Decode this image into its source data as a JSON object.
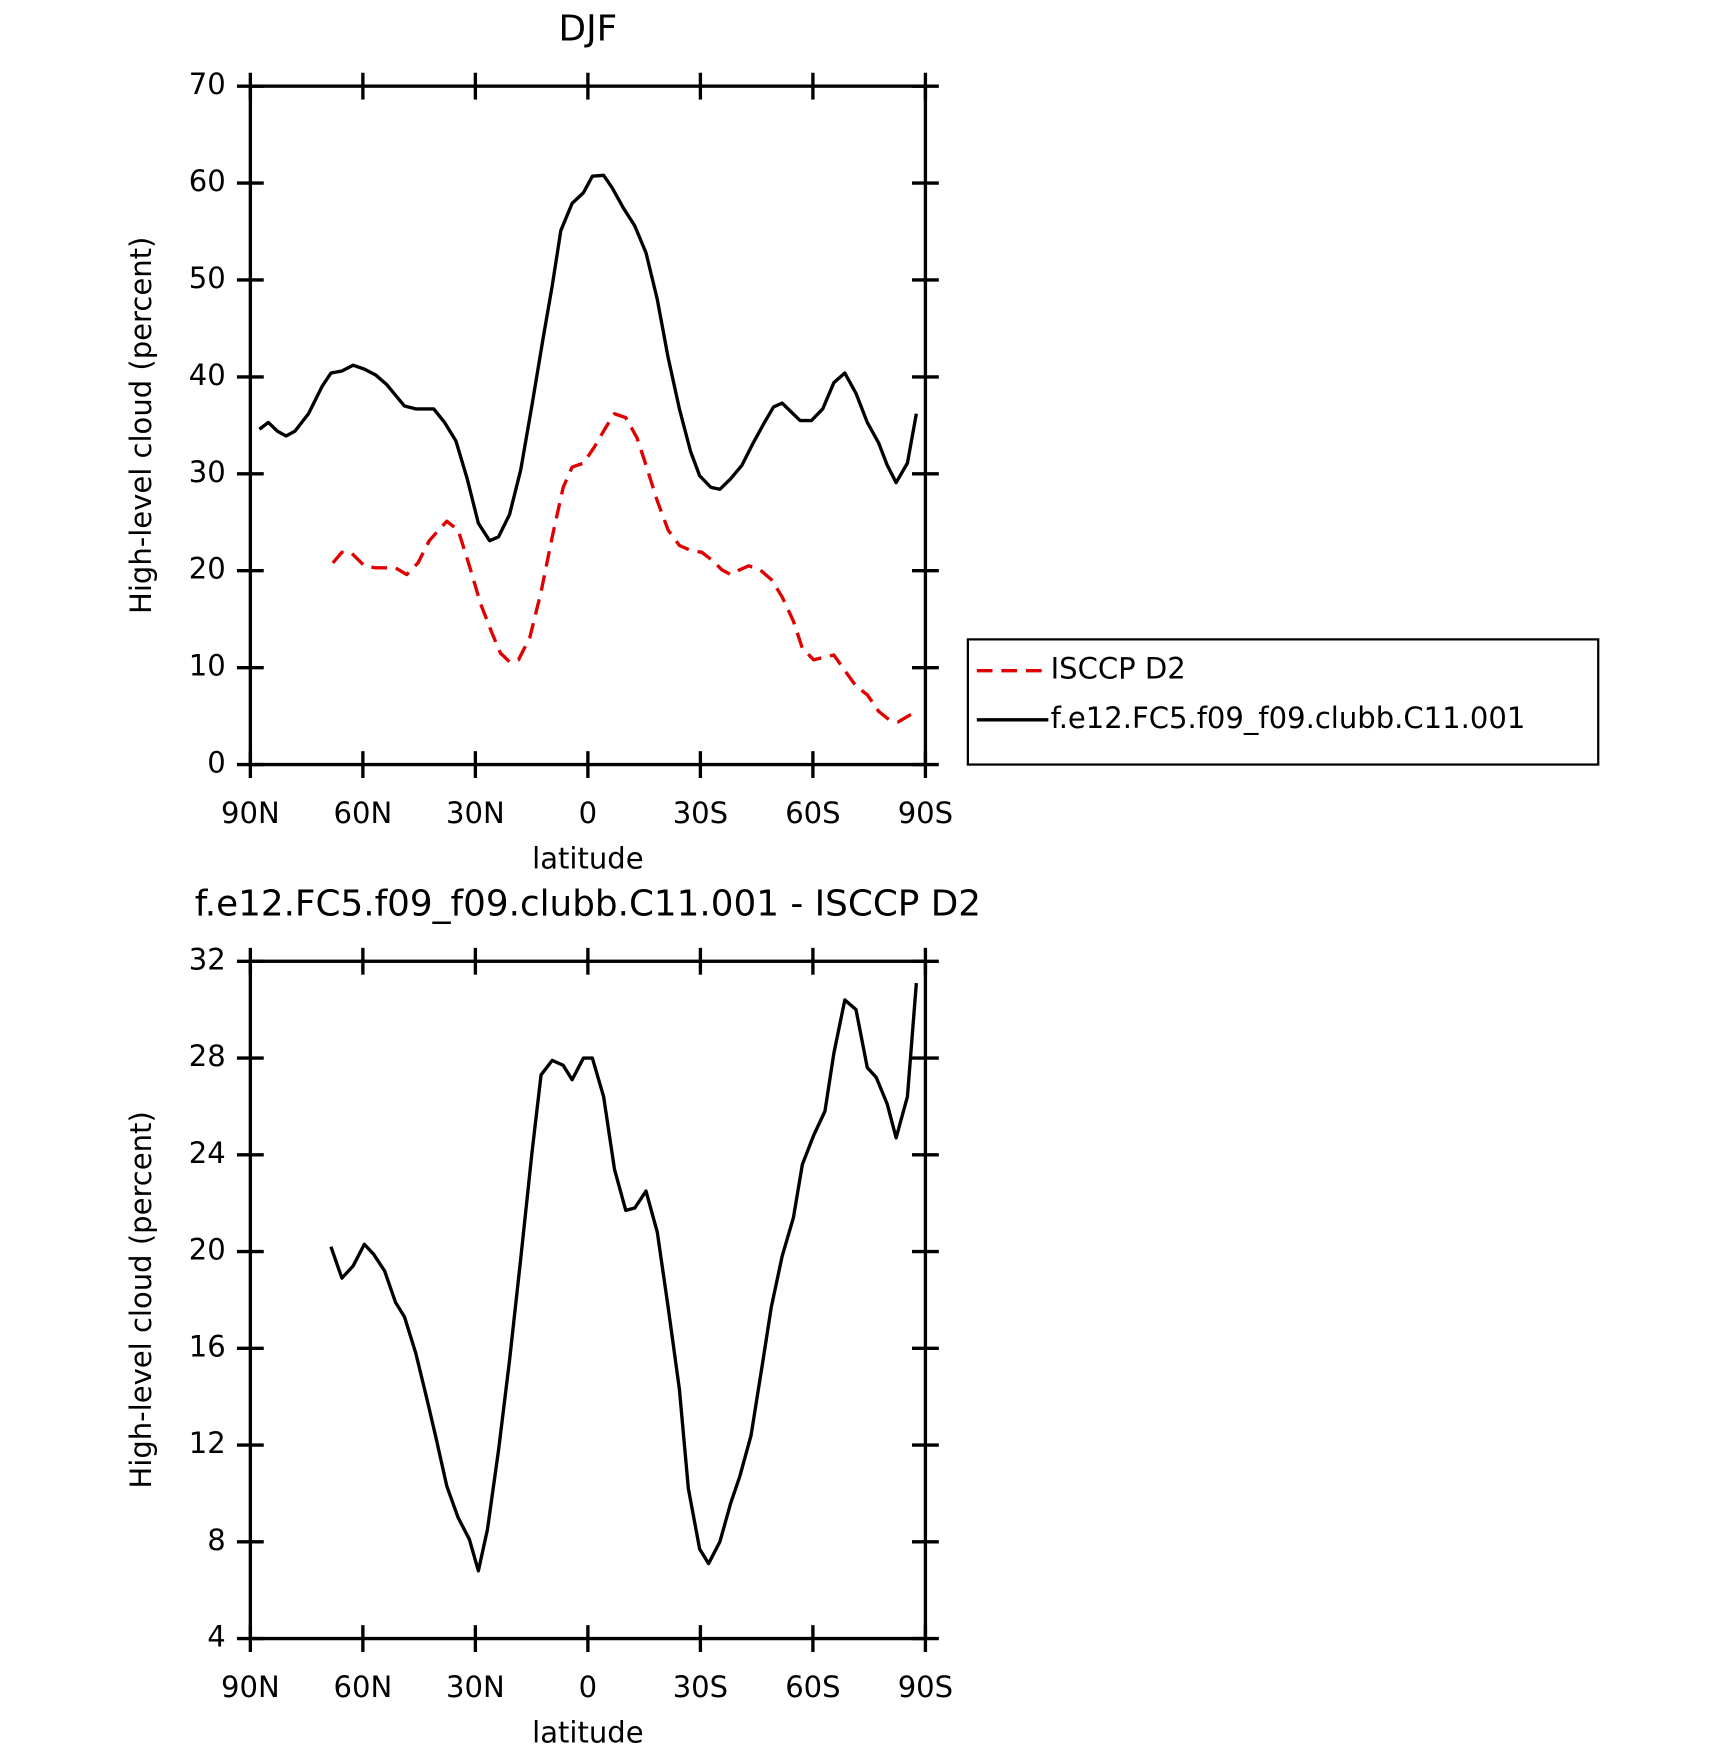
{
  "chart_data": [
    {
      "type": "line",
      "title": "DJF",
      "xlabel": "latitude",
      "ylabel": "High-level cloud (percent)",
      "xlim": [
        90,
        -90
      ],
      "xticks": [
        {
          "value": 90,
          "label": "90N"
        },
        {
          "value": 60,
          "label": "60N"
        },
        {
          "value": 30,
          "label": "30N"
        },
        0,
        {
          "value": -30,
          "label": "30S"
        },
        {
          "value": -60,
          "label": "60S"
        },
        {
          "value": -90,
          "label": "90S"
        }
      ],
      "ylim": [
        0,
        70
      ],
      "yticks": [
        0,
        10,
        20,
        30,
        40,
        50,
        60,
        70
      ],
      "legend": "right",
      "series": [
        {
          "name": "ISCCP D2",
          "color": "#e00000",
          "dash": true,
          "x": [
            68.0,
            65.6,
            63.2,
            59.6,
            56.6,
            53.6,
            51.3,
            48.3,
            45.3,
            42.3,
            39.3,
            37.6,
            34.6,
            31.6,
            28.6,
            25.6,
            23.3,
            20.9,
            18.5,
            15.5,
            12.5,
            9.5,
            6.6,
            4.2,
            1.2,
            -1.8,
            -4.8,
            -7.1,
            -10.1,
            -13.1,
            -15.5,
            -18.5,
            -21.4,
            -24.4,
            -27.4,
            -30.4,
            -33.4,
            -35.7,
            -38.1,
            -40.5,
            -42.9,
            -45.9,
            -48.9,
            -51.8,
            -54.8,
            -57.2,
            -60.2,
            -63.2,
            -65.6,
            -68.5,
            -71.5,
            -74.5,
            -77.5,
            -80.4,
            -82.8,
            -85.8,
            -88.2
          ],
          "values": [
            20.8,
            21.9,
            21.9,
            20.5,
            20.3,
            20.3,
            20.3,
            19.6,
            20.8,
            23.1,
            24.4,
            25.1,
            24.2,
            20.5,
            16.6,
            13.6,
            11.5,
            10.6,
            10.8,
            13.1,
            17.8,
            23.5,
            28.6,
            30.7,
            31.1,
            32.8,
            34.8,
            36.2,
            35.8,
            33.7,
            30.9,
            27.2,
            24.2,
            22.6,
            22.1,
            21.9,
            21.0,
            20.1,
            19.6,
            20.1,
            20.5,
            20.1,
            19.1,
            17.3,
            14.8,
            12.0,
            10.8,
            11.1,
            11.3,
            9.7,
            8.1,
            7.2,
            5.5,
            4.6,
            4.4,
            5.1,
            5.5
          ]
        },
        {
          "name": "f.e12.FC5.f09_f09.clubb.C11.001",
          "color": "#000000",
          "dash": false,
          "x": [
            87.6,
            85.2,
            82.8,
            80.5,
            78.1,
            74.5,
            70.9,
            68.5,
            65.6,
            62.6,
            59.6,
            56.6,
            53.6,
            48.9,
            45.9,
            41.1,
            38.2,
            35.2,
            32.2,
            29.2,
            26.2,
            23.8,
            20.9,
            17.9,
            14.9,
            11.9,
            9.5,
            7.2,
            4.2,
            1.2,
            -1.2,
            -4.2,
            -6.5,
            -9.5,
            -12.5,
            -15.5,
            -18.5,
            -21.4,
            -24.4,
            -27.4,
            -29.8,
            -32.8,
            -35.2,
            -38.1,
            -41.1,
            -44.1,
            -47.1,
            -49.5,
            -51.8,
            -56.6,
            -59.6,
            -62.6,
            -65.6,
            -68.5,
            -71.5,
            -74.5,
            -77.5,
            -79.8,
            -82.2,
            -85.2,
            -87.6
          ],
          "values": [
            34.6,
            35.3,
            34.4,
            33.9,
            34.4,
            36.2,
            39.0,
            40.4,
            40.6,
            41.2,
            40.8,
            40.2,
            39.2,
            37.0,
            36.7,
            36.7,
            35.3,
            33.4,
            29.5,
            24.9,
            23.1,
            23.5,
            25.8,
            30.4,
            37.1,
            44.1,
            49.4,
            55.1,
            57.9,
            59.0,
            60.7,
            60.8,
            59.5,
            57.4,
            55.6,
            52.8,
            48.0,
            42.0,
            36.7,
            32.3,
            29.8,
            28.6,
            28.4,
            29.5,
            30.9,
            33.2,
            35.3,
            36.9,
            37.3,
            35.5,
            35.5,
            36.7,
            39.4,
            40.4,
            38.3,
            35.3,
            33.2,
            30.9,
            29.1,
            31.1,
            36.2
          ]
        }
      ]
    },
    {
      "type": "line",
      "title": "f.e12.FC5.f09_f09.clubb.C11.001 - ISCCP D2",
      "xlabel": "latitude",
      "ylabel": "High-level cloud (percent)",
      "xlim": [
        90,
        -90
      ],
      "xticks": [
        {
          "value": 90,
          "label": "90N"
        },
        {
          "value": 60,
          "label": "60N"
        },
        {
          "value": 30,
          "label": "30N"
        },
        0,
        {
          "value": -30,
          "label": "30S"
        },
        {
          "value": -60,
          "label": "60S"
        },
        {
          "value": -90,
          "label": "90S"
        }
      ],
      "ylim": [
        4,
        32
      ],
      "yticks": [
        4,
        8,
        12,
        16,
        20,
        24,
        28,
        32
      ],
      "color": "#000000",
      "x": [
        68.5,
        65.6,
        62.6,
        59.6,
        57.2,
        54.2,
        51.3,
        48.9,
        45.9,
        42.9,
        40.5,
        37.6,
        34.6,
        31.6,
        29.2,
        26.8,
        23.8,
        20.9,
        17.9,
        14.9,
        12.5,
        9.5,
        6.6,
        4.2,
        1.2,
        -1.2,
        -4.2,
        -7.1,
        -10.1,
        -12.5,
        -15.5,
        -18.5,
        -21.4,
        -24.4,
        -26.8,
        -29.8,
        -32.2,
        -35.2,
        -38.1,
        -40.5,
        -43.5,
        -46.5,
        -48.9,
        -51.8,
        -54.8,
        -57.2,
        -60.2,
        -63.2,
        -65.6,
        -68.5,
        -71.5,
        -74.5,
        -76.9,
        -79.8,
        -82.2,
        -85.2,
        -87.6
      ],
      "values": [
        20.2,
        18.9,
        19.4,
        20.3,
        19.9,
        19.2,
        17.9,
        17.3,
        15.8,
        13.9,
        12.3,
        10.3,
        9.0,
        8.1,
        6.8,
        8.5,
        11.8,
        15.5,
        19.7,
        24.1,
        27.3,
        27.9,
        27.7,
        27.1,
        28.0,
        28.0,
        26.4,
        23.4,
        21.7,
        21.8,
        22.5,
        20.8,
        17.7,
        14.3,
        10.2,
        7.7,
        7.1,
        8.0,
        9.6,
        10.7,
        12.4,
        15.3,
        17.7,
        19.8,
        21.4,
        23.6,
        24.8,
        25.8,
        28.2,
        30.4,
        30.0,
        27.6,
        27.2,
        26.1,
        24.7,
        26.4,
        31.1
      ]
    }
  ]
}
